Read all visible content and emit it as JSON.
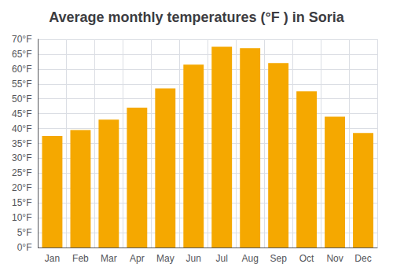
{
  "chart_data": {
    "type": "bar",
    "title": "Average monthly temperatures (°F ) in Soria",
    "categories": [
      "Jan",
      "Feb",
      "Mar",
      "Apr",
      "May",
      "Jun",
      "Jul",
      "Aug",
      "Sep",
      "Oct",
      "Nov",
      "Dec"
    ],
    "values": [
      37.5,
      39.5,
      43,
      47,
      53.5,
      61.5,
      67.5,
      67,
      62,
      52.5,
      44,
      38.5
    ],
    "color": "#F5A800",
    "ylim": [
      0,
      70
    ],
    "yticks": [
      {
        "value": 0,
        "label": "0°F"
      },
      {
        "value": 5,
        "label": "5°F"
      },
      {
        "value": 10,
        "label": "10°F"
      },
      {
        "value": 15,
        "label": "15°F"
      },
      {
        "value": 20,
        "label": "20°F"
      },
      {
        "value": 25,
        "label": "25°F"
      },
      {
        "value": 30,
        "label": "30°F"
      },
      {
        "value": 35,
        "label": "35°F"
      },
      {
        "value": 40,
        "label": "40°F"
      },
      {
        "value": 45,
        "label": "45°F"
      },
      {
        "value": 50,
        "label": "50°F"
      },
      {
        "value": 55,
        "label": "55°F"
      },
      {
        "value": 60,
        "label": "60°F"
      },
      {
        "value": 65,
        "label": "65°F"
      },
      {
        "value": 70,
        "label": "70°F"
      }
    ],
    "grid": true
  }
}
